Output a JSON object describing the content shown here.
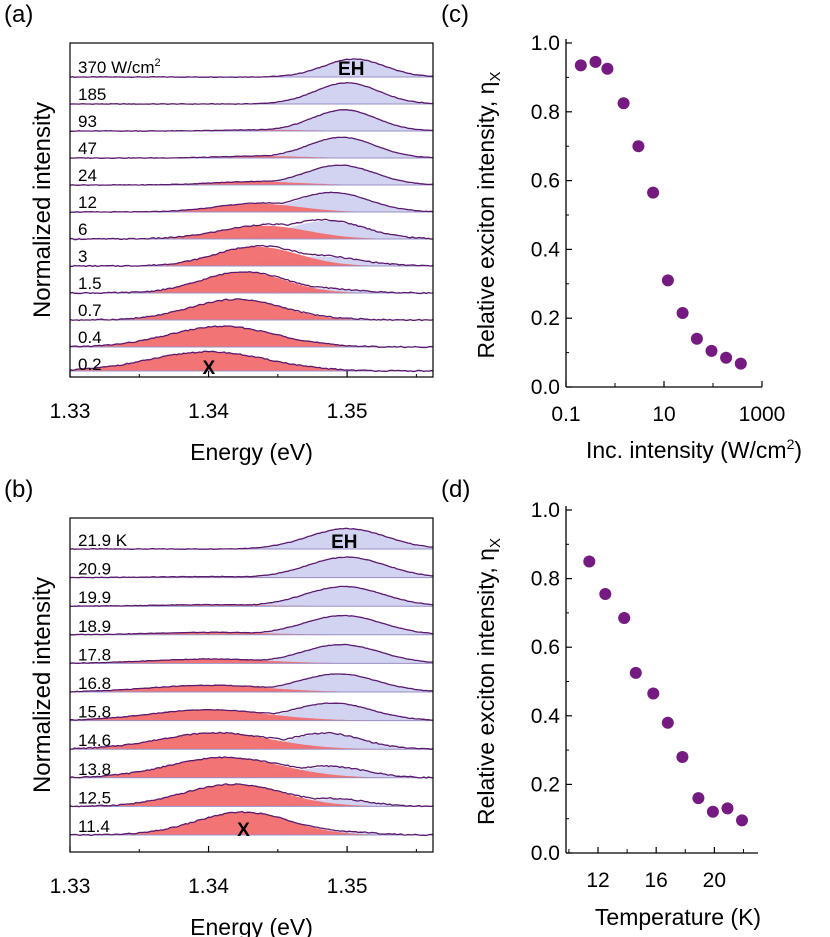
{
  "colors": {
    "x_fill": "#f26d6d",
    "eh_fill": "#c9cbee",
    "curve": "#5b1a6e",
    "baseline": "#9a8fc4",
    "dot": "#741a80",
    "axis": "#000000"
  },
  "chart_data": [
    {
      "panel": "(a)",
      "type": "line",
      "xlabel": "Energy (eV)",
      "ylabel": "Normalized intensity",
      "xlim": [
        1.33,
        1.3562
      ],
      "xticks": [
        "1.33",
        "1.34",
        "1.35"
      ],
      "peak_labels": {
        "x": "X",
        "eh": "EH"
      },
      "series": [
        {
          "name": "370",
          "label": "370 W/cm",
          "label_sup": "2",
          "x_amp": 0.0,
          "x_center": 1.338,
          "x_width": 0.004,
          "eh_amp": 0.75,
          "eh_center": 1.3505,
          "eh_width": 0.0022
        },
        {
          "name": "185",
          "label": "185",
          "x_amp": 0.0,
          "x_center": 1.338,
          "x_width": 0.004,
          "eh_amp": 0.88,
          "eh_center": 1.35,
          "eh_width": 0.0023
        },
        {
          "name": "93",
          "label": "93",
          "x_amp": 0.05,
          "x_center": 1.3445,
          "x_width": 0.003,
          "eh_amp": 0.88,
          "eh_center": 1.3498,
          "eh_width": 0.0023
        },
        {
          "name": "47",
          "label": "47",
          "x_amp": 0.08,
          "x_center": 1.344,
          "x_width": 0.003,
          "eh_amp": 0.86,
          "eh_center": 1.3496,
          "eh_width": 0.0024
        },
        {
          "name": "24",
          "label": "24",
          "x_amp": 0.14,
          "x_center": 1.3435,
          "x_width": 0.0032,
          "eh_amp": 0.82,
          "eh_center": 1.3495,
          "eh_width": 0.0025
        },
        {
          "name": "12",
          "label": "12",
          "x_amp": 0.35,
          "x_center": 1.3435,
          "x_width": 0.003,
          "eh_amp": 0.8,
          "eh_center": 1.349,
          "eh_width": 0.0026
        },
        {
          "name": "6",
          "label": "6",
          "x_amp": 0.55,
          "x_center": 1.344,
          "x_width": 0.0032,
          "eh_amp": 0.75,
          "eh_center": 1.3485,
          "eh_width": 0.0028
        },
        {
          "name": "3",
          "label": "3",
          "x_amp": 0.8,
          "x_center": 1.3435,
          "x_width": 0.003,
          "eh_amp": 0.4,
          "eh_center": 1.3478,
          "eh_width": 0.003
        },
        {
          "name": "1.5",
          "label": "1.5",
          "x_amp": 0.88,
          "x_center": 1.3425,
          "x_width": 0.003,
          "eh_amp": 0.2,
          "eh_center": 1.3475,
          "eh_width": 0.0028
        },
        {
          "name": "0.7",
          "label": "0.7",
          "x_amp": 0.86,
          "x_center": 1.342,
          "x_width": 0.0033,
          "eh_amp": 0.1,
          "eh_center": 1.3475,
          "eh_width": 0.0025
        },
        {
          "name": "0.4",
          "label": "0.4",
          "x_amp": 0.86,
          "x_center": 1.341,
          "x_width": 0.0038,
          "eh_amp": 0.05,
          "eh_center": 1.3475,
          "eh_width": 0.0025
        },
        {
          "name": "0.2",
          "label": "0.2",
          "x_amp": 0.8,
          "x_center": 1.34,
          "x_width": 0.0042,
          "eh_amp": 0.0,
          "eh_center": 1.3475,
          "eh_width": 0.0025
        }
      ]
    },
    {
      "panel": "(b)",
      "type": "line",
      "xlabel": "Energy (eV)",
      "ylabel": "Normalized intensity",
      "xlim": [
        1.33,
        1.3562
      ],
      "xticks": [
        "1.33",
        "1.34",
        "1.35"
      ],
      "peak_labels": {
        "x": "X",
        "eh": "EH"
      },
      "series": [
        {
          "name": "21.9",
          "label": "21.9 K",
          "x_amp": 0.0,
          "x_center": 1.34,
          "x_width": 0.004,
          "eh_amp": 0.85,
          "eh_center": 1.35,
          "eh_width": 0.0028
        },
        {
          "name": "20.9",
          "label": "20.9",
          "x_amp": 0.04,
          "x_center": 1.34,
          "x_width": 0.004,
          "eh_amp": 0.85,
          "eh_center": 1.35,
          "eh_width": 0.0028
        },
        {
          "name": "19.9",
          "label": "19.9",
          "x_amp": 0.06,
          "x_center": 1.34,
          "x_width": 0.004,
          "eh_amp": 0.82,
          "eh_center": 1.3498,
          "eh_width": 0.0028
        },
        {
          "name": "18.9",
          "label": "18.9",
          "x_amp": 0.1,
          "x_center": 1.34,
          "x_width": 0.0042,
          "eh_amp": 0.8,
          "eh_center": 1.3497,
          "eh_width": 0.0028
        },
        {
          "name": "17.8",
          "label": "17.8",
          "x_amp": 0.18,
          "x_center": 1.34,
          "x_width": 0.0042,
          "eh_amp": 0.78,
          "eh_center": 1.3496,
          "eh_width": 0.0028
        },
        {
          "name": "16.8",
          "label": "16.8",
          "x_amp": 0.28,
          "x_center": 1.34,
          "x_width": 0.0042,
          "eh_amp": 0.75,
          "eh_center": 1.3494,
          "eh_width": 0.0028
        },
        {
          "name": "15.8",
          "label": "15.8",
          "x_amp": 0.45,
          "x_center": 1.34,
          "x_width": 0.0042,
          "eh_amp": 0.72,
          "eh_center": 1.349,
          "eh_width": 0.0028
        },
        {
          "name": "14.6",
          "label": "14.6",
          "x_amp": 0.68,
          "x_center": 1.3405,
          "x_width": 0.004,
          "eh_amp": 0.65,
          "eh_center": 1.3485,
          "eh_width": 0.0026
        },
        {
          "name": "13.8",
          "label": "13.8",
          "x_amp": 0.85,
          "x_center": 1.3412,
          "x_width": 0.004,
          "eh_amp": 0.45,
          "eh_center": 1.3488,
          "eh_width": 0.0026
        },
        {
          "name": "12.5",
          "label": "12.5",
          "x_amp": 0.92,
          "x_center": 1.3418,
          "x_width": 0.0036,
          "eh_amp": 0.3,
          "eh_center": 1.349,
          "eh_width": 0.0025
        },
        {
          "name": "11.4",
          "label": "11.4",
          "x_amp": 0.95,
          "x_center": 1.3425,
          "x_width": 0.0034,
          "eh_amp": 0.15,
          "eh_center": 1.349,
          "eh_width": 0.0025
        }
      ]
    },
    {
      "panel": "(c)",
      "type": "scatter",
      "xscale": "log",
      "xlabel": "Inc. intensity (W/cm",
      "xlabel_sup": "2",
      "xlabel_end": ")",
      "ylabel": "Relative exciton intensity, η",
      "ylabel_sub": "X",
      "xlim": [
        0.1,
        1000
      ],
      "ylim": [
        0.0,
        1.0
      ],
      "xticks": [
        {
          "value": 0.1,
          "label": "0.1"
        },
        {
          "value": 10,
          "label": "10"
        },
        {
          "value": 1000,
          "label": "1000"
        }
      ],
      "yticks": [
        "0.0",
        "0.2",
        "0.4",
        "0.6",
        "0.8",
        "1.0"
      ],
      "x": [
        0.2,
        0.4,
        0.7,
        1.5,
        3,
        6,
        12,
        24,
        47,
        93,
        185,
        370
      ],
      "y": [
        0.935,
        0.945,
        0.925,
        0.825,
        0.7,
        0.565,
        0.31,
        0.215,
        0.14,
        0.105,
        0.085,
        0.068
      ]
    },
    {
      "panel": "(d)",
      "type": "scatter",
      "xlabel": "Temperature (K)",
      "ylabel": "Relative exciton intensity, η",
      "ylabel_sub": "X",
      "xlim": [
        9.8,
        23.0
      ],
      "ylim": [
        0.0,
        1.0
      ],
      "xticks": [
        {
          "value": 12,
          "label": "12"
        },
        {
          "value": 16,
          "label": "16"
        },
        {
          "value": 20,
          "label": "20"
        }
      ],
      "yticks": [
        "0.0",
        "0.2",
        "0.4",
        "0.6",
        "0.8",
        "1.0"
      ],
      "x": [
        11.4,
        12.5,
        13.8,
        14.6,
        15.8,
        16.8,
        17.8,
        18.9,
        19.9,
        20.9,
        21.9
      ],
      "y": [
        0.85,
        0.755,
        0.685,
        0.525,
        0.465,
        0.38,
        0.28,
        0.16,
        0.12,
        0.13,
        0.095
      ]
    }
  ]
}
